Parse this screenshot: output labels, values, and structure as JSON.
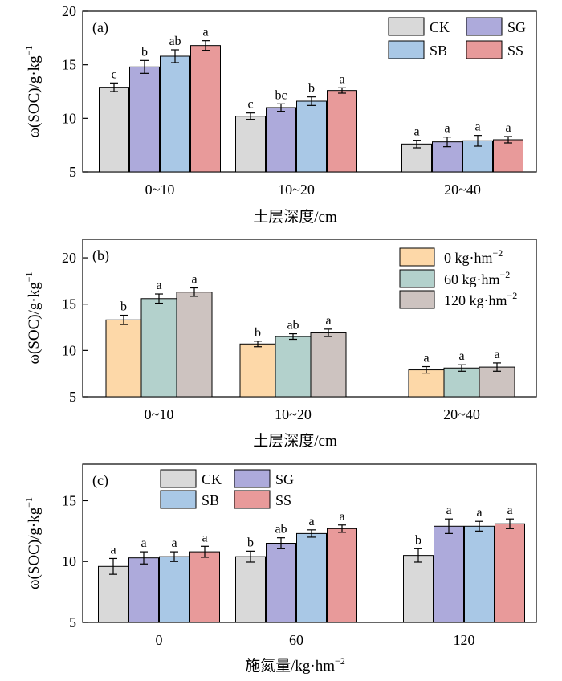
{
  "chart_data": [
    {
      "panel": "(a)",
      "type": "bar",
      "ylabel_main": "ω(SOC)/g·kg",
      "ylabel_sup": "−1",
      "xlabel": "土层深度/cm",
      "xlabel_sup": "",
      "ylim": [
        5,
        20
      ],
      "yticks": [
        "5",
        "10",
        "15",
        "20"
      ],
      "categories": [
        "0~10",
        "10~20",
        "20~40"
      ],
      "series": [
        {
          "name": "CK",
          "color": "#d9d9d9",
          "values": [
            12.9,
            10.2,
            7.6
          ],
          "errors": [
            0.4,
            0.3,
            0.35
          ],
          "letters": [
            "c",
            "c",
            "a"
          ]
        },
        {
          "name": "SG",
          "color": "#adaadb",
          "values": [
            14.8,
            11.0,
            7.8
          ],
          "errors": [
            0.6,
            0.35,
            0.45
          ],
          "letters": [
            "b",
            "bc",
            "a"
          ]
        },
        {
          "name": "SB",
          "color": "#a9c8e6",
          "values": [
            15.8,
            11.6,
            7.9
          ],
          "errors": [
            0.6,
            0.4,
            0.5
          ],
          "letters": [
            "ab",
            "b",
            "a"
          ]
        },
        {
          "name": "SS",
          "color": "#e89a9a",
          "values": [
            16.8,
            12.6,
            8.0
          ],
          "errors": [
            0.45,
            0.25,
            0.3
          ],
          "letters": [
            "a",
            "a",
            "a"
          ]
        }
      ],
      "legend": {
        "placement": "top-right",
        "columns": 2
      }
    },
    {
      "panel": "(b)",
      "type": "bar",
      "ylabel_main": "ω(SOC)/g·kg",
      "ylabel_sup": "−1",
      "xlabel": "土层深度/cm",
      "xlabel_sup": "",
      "ylim": [
        5,
        22
      ],
      "yticks": [
        "5",
        "10",
        "15",
        "20"
      ],
      "categories": [
        "0~10",
        "10~20",
        "20~40"
      ],
      "series": [
        {
          "name": "0 kg·hm",
          "name_sup": "−2",
          "color": "#fdd8a8",
          "values": [
            13.3,
            10.7,
            7.9
          ],
          "errors": [
            0.5,
            0.3,
            0.35
          ],
          "letters": [
            "b",
            "b",
            "a"
          ]
        },
        {
          "name": "60 kg·hm",
          "name_sup": "−2",
          "color": "#b3d1cc",
          "values": [
            15.6,
            11.5,
            8.1
          ],
          "errors": [
            0.5,
            0.3,
            0.35
          ],
          "letters": [
            "a",
            "ab",
            "a"
          ]
        },
        {
          "name": "120 kg·hm",
          "name_sup": "−2",
          "color": "#cdc3c0",
          "values": [
            16.3,
            11.9,
            8.2
          ],
          "errors": [
            0.45,
            0.4,
            0.45
          ],
          "letters": [
            "a",
            "a",
            "a"
          ]
        }
      ],
      "legend": {
        "placement": "top-right",
        "columns": 1
      }
    },
    {
      "panel": "(c)",
      "type": "bar",
      "ylabel_main": "ω(SOC)/g·kg",
      "ylabel_sup": "−1",
      "xlabel": "施氮量/kg·hm",
      "xlabel_sup": "−2",
      "ylim": [
        5,
        18
      ],
      "yticks": [
        "5",
        "10",
        "15"
      ],
      "categories": [
        "0",
        "60",
        "120"
      ],
      "series": [
        {
          "name": "CK",
          "color": "#d9d9d9",
          "values": [
            9.6,
            10.4,
            10.5
          ],
          "errors": [
            0.65,
            0.45,
            0.55
          ],
          "letters": [
            "a",
            "b",
            "b"
          ]
        },
        {
          "name": "SG",
          "color": "#adaadb",
          "values": [
            10.3,
            11.5,
            12.9
          ],
          "errors": [
            0.5,
            0.45,
            0.6
          ],
          "letters": [
            "a",
            "ab",
            "a"
          ]
        },
        {
          "name": "SB",
          "color": "#a9c8e6",
          "values": [
            10.4,
            12.3,
            12.9
          ],
          "errors": [
            0.4,
            0.3,
            0.4
          ],
          "letters": [
            "a",
            "a",
            "a"
          ]
        },
        {
          "name": "SS",
          "color": "#e89a9a",
          "values": [
            10.8,
            12.7,
            13.1
          ],
          "errors": [
            0.45,
            0.3,
            0.4
          ],
          "letters": [
            "a",
            "a",
            "a"
          ]
        }
      ],
      "legend": {
        "placement": "top-left",
        "columns": 2
      }
    }
  ]
}
